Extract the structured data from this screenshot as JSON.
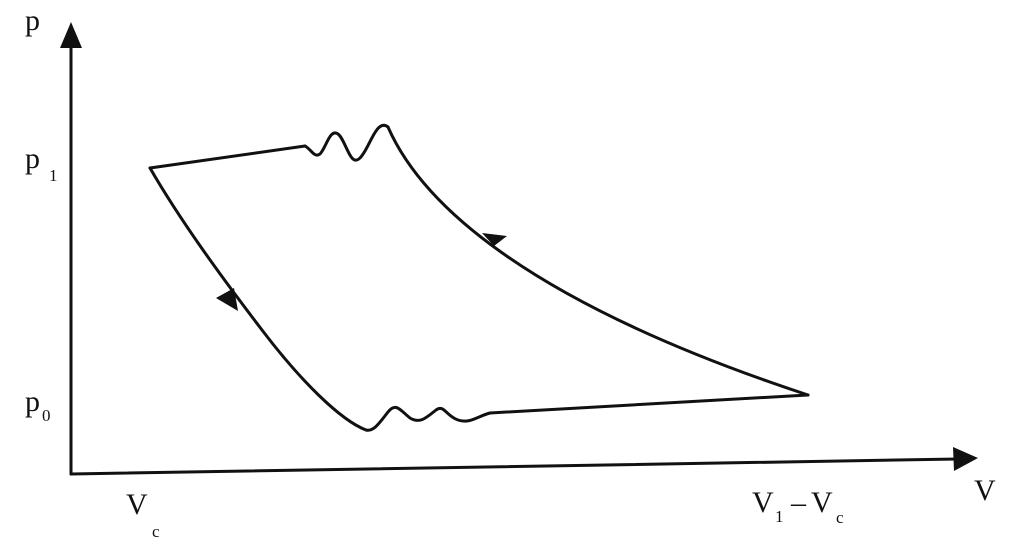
{
  "axes": {
    "y_label": "p",
    "x_label": "V"
  },
  "ticks": {
    "p1": {
      "main": "p",
      "sub": "1"
    },
    "p0": {
      "main": "p",
      "sub": "0"
    },
    "vc": {
      "main": "V",
      "sub": "c"
    },
    "v1": {
      "main": "V",
      "sub1": "1",
      "dash": "–",
      "main2": "V",
      "sub2": "c"
    }
  },
  "colors": {
    "ink": "#111111",
    "background": "#ffffff"
  }
}
